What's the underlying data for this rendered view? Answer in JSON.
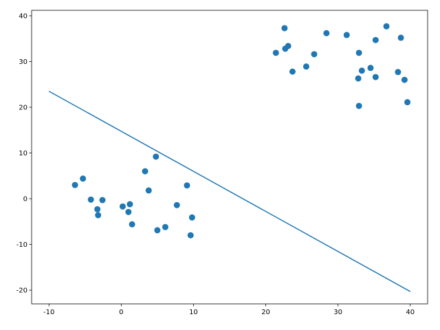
{
  "chart_data": {
    "type": "scatter",
    "series": [
      {
        "type": "line",
        "color": "#1f77b4",
        "x": [
          -10,
          40
        ],
        "values": [
          23.5,
          -20.3
        ]
      },
      {
        "type": "scatter",
        "color": "#1f77b4",
        "x": [
          -6.4,
          -5.3,
          -4.2,
          -2.6,
          -3.3,
          -3.2,
          0.2,
          1.2,
          1.0,
          1.5,
          3.3,
          3.8,
          4.8,
          5.0,
          6.1,
          7.7,
          9.1,
          9.8,
          9.6,
          21.4,
          22.6,
          22.7,
          23.1,
          23.7,
          25.6,
          26.7,
          28.4,
          31.2,
          32.9,
          32.8,
          33.3,
          32.9,
          34.5,
          35.2,
          35.2,
          36.7,
          38.3,
          38.7,
          39.2,
          39.6
        ],
        "values": [
          3.0,
          4.4,
          -0.2,
          -0.3,
          -2.3,
          -3.6,
          -1.7,
          -1.2,
          -2.9,
          -5.6,
          6.0,
          1.8,
          9.2,
          -6.9,
          -6.2,
          -1.4,
          2.9,
          -4.1,
          -8.0,
          31.9,
          37.3,
          32.8,
          33.4,
          27.8,
          28.9,
          31.6,
          36.2,
          35.8,
          31.9,
          26.3,
          28.0,
          20.3,
          28.6,
          34.7,
          26.6,
          37.7,
          27.7,
          35.2,
          26.0,
          21.1
        ]
      }
    ],
    "xlim": [
      -12.4,
      42.4
    ],
    "xticks": [
      -10,
      0,
      10,
      20,
      30,
      40
    ],
    "ylim": [
      -23.0,
      41.2
    ],
    "yticks": [
      -20,
      -10,
      0,
      10,
      20,
      30,
      40
    ]
  }
}
